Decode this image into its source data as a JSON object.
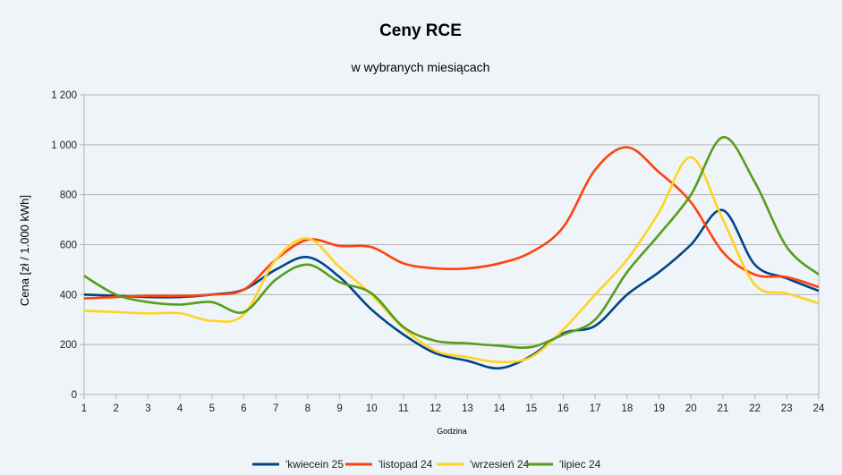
{
  "chart_data": {
    "type": "line",
    "title": "Ceny RCE",
    "subtitle": "w wybranych miesiącach",
    "xlabel": "Godzina",
    "ylabel": "Cena [zł / 1.000 kWh]",
    "x": [
      1,
      2,
      3,
      4,
      5,
      6,
      7,
      8,
      9,
      10,
      11,
      12,
      13,
      14,
      15,
      16,
      17,
      18,
      19,
      20,
      21,
      22,
      23,
      24
    ],
    "ylim": [
      0,
      1200
    ],
    "yticks": [
      0,
      200,
      400,
      600,
      800,
      1000,
      1200
    ],
    "ytick_labels": [
      "0",
      "200",
      "400",
      "600",
      "800",
      "1 000",
      "1 200"
    ],
    "grid": true,
    "smooth": true,
    "legend_position": "bottom",
    "series": [
      {
        "name": "'kwiecein 25",
        "color": "#004586",
        "values": [
          400,
          395,
          390,
          390,
          400,
          420,
          500,
          550,
          470,
          340,
          240,
          165,
          135,
          105,
          155,
          245,
          275,
          400,
          490,
          600,
          738,
          520,
          465,
          415
        ]
      },
      {
        "name": "'listopad 24",
        "color": "#ff420e",
        "values": [
          385,
          390,
          395,
          395,
          400,
          420,
          540,
          620,
          595,
          590,
          525,
          505,
          505,
          525,
          570,
          670,
          900,
          990,
          890,
          770,
          570,
          480,
          470,
          430
        ]
      },
      {
        "name": "'wrzesień 24",
        "color": "#ffd320",
        "values": [
          335,
          330,
          325,
          325,
          295,
          320,
          540,
          625,
          510,
          400,
          265,
          175,
          150,
          130,
          150,
          260,
          400,
          540,
          730,
          950,
          700,
          440,
          405,
          365
        ]
      },
      {
        "name": "'lipiec 24",
        "color": "#579d1c",
        "values": [
          475,
          400,
          370,
          360,
          370,
          330,
          460,
          520,
          450,
          405,
          270,
          215,
          205,
          195,
          190,
          240,
          300,
          490,
          640,
          800,
          1030,
          850,
          590,
          480
        ]
      }
    ]
  }
}
